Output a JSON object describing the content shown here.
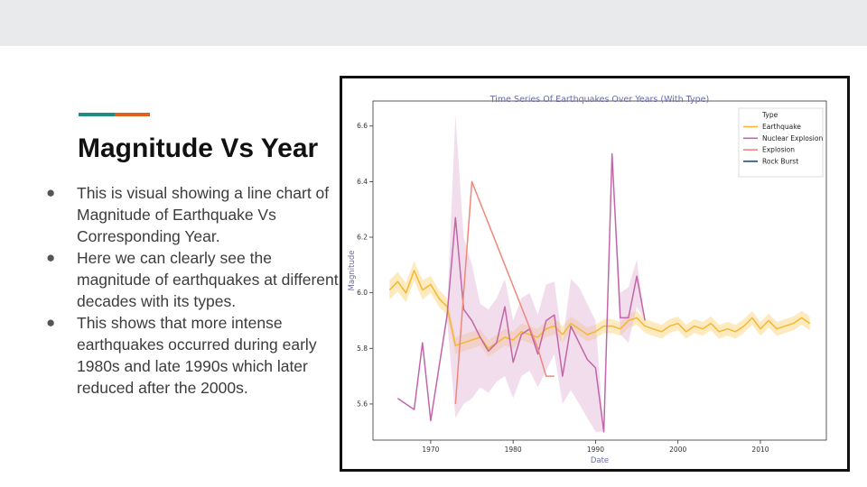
{
  "slide": {
    "title": "Magnitude Vs Year",
    "bullets": [
      "This is visual showing a line chart of Magnitude of Earthquake Vs Corresponding Year.",
      "Here we can clearly see the magnitude of earthquakes at different decades with its types.",
      "This shows that more intense earthquakes occurred during early 1980s and late 1990s which later reduced after the 2000s."
    ],
    "bullet_glyph": "●",
    "colors": {
      "topbar": "#e8eaeb",
      "accent_teal": "#1e8c86",
      "accent_orange": "#e0601f"
    }
  },
  "chart_data": {
    "type": "line",
    "title": "Time Series Of Earthquakes Over Years (With Type)",
    "xlabel": "Date",
    "ylabel": "Magnitude",
    "xlim": [
      1963,
      2018
    ],
    "ylim": [
      5.47,
      6.69
    ],
    "xticks": [
      1970,
      1980,
      1990,
      2000,
      2010
    ],
    "yticks": [
      5.6,
      5.8,
      6.0,
      6.2,
      6.4,
      6.6
    ],
    "ytick_labels": [
      "5.6",
      "5.8",
      "6.0",
      "6.2",
      "6.4",
      "6.6"
    ],
    "grid": false,
    "legend": {
      "title": "Type",
      "placement": "top-right"
    },
    "series": [
      {
        "name": "Earthquake",
        "color": "#f5b733",
        "band_color": "#fbd98a",
        "x": [
          1965,
          1966,
          1967,
          1968,
          1969,
          1970,
          1971,
          1972,
          1973,
          1974,
          1975,
          1976,
          1977,
          1978,
          1979,
          1980,
          1981,
          1982,
          1983,
          1984,
          1985,
          1986,
          1987,
          1988,
          1989,
          1990,
          1991,
          1992,
          1993,
          1994,
          1995,
          1996,
          1997,
          1998,
          1999,
          2000,
          2001,
          2002,
          2003,
          2004,
          2005,
          2006,
          2007,
          2008,
          2009,
          2010,
          2011,
          2012,
          2013,
          2014,
          2015,
          2016
        ],
        "y": [
          6.01,
          6.04,
          6.0,
          6.08,
          6.01,
          6.03,
          5.98,
          5.95,
          5.81,
          5.82,
          5.83,
          5.84,
          5.8,
          5.82,
          5.84,
          5.83,
          5.86,
          5.85,
          5.84,
          5.87,
          5.88,
          5.85,
          5.89,
          5.87,
          5.85,
          5.86,
          5.88,
          5.88,
          5.87,
          5.9,
          5.91,
          5.88,
          5.87,
          5.86,
          5.88,
          5.89,
          5.86,
          5.88,
          5.87,
          5.89,
          5.86,
          5.87,
          5.86,
          5.88,
          5.91,
          5.87,
          5.9,
          5.87,
          5.88,
          5.89,
          5.91,
          5.89
        ],
        "band_half_width": [
          0.035,
          0.035,
          0.035,
          0.035,
          0.035,
          0.03,
          0.03,
          0.03,
          0.03,
          0.03,
          0.03,
          0.03,
          0.03,
          0.03,
          0.03,
          0.03,
          0.03,
          0.03,
          0.03,
          0.03,
          0.03,
          0.03,
          0.025,
          0.025,
          0.025,
          0.025,
          0.025,
          0.025,
          0.025,
          0.025,
          0.025,
          0.025,
          0.025,
          0.025,
          0.025,
          0.025,
          0.025,
          0.025,
          0.025,
          0.025,
          0.025,
          0.025,
          0.025,
          0.025,
          0.025,
          0.025,
          0.025,
          0.025,
          0.025,
          0.025,
          0.025,
          0.025
        ]
      },
      {
        "name": "Nuclear Explosion",
        "color": "#c266a8",
        "band_color": "#e3b3d6",
        "x": [
          1966,
          1968,
          1969,
          1970,
          1972,
          1973,
          1974,
          1975,
          1976,
          1977,
          1978,
          1979,
          1980,
          1981,
          1982,
          1983,
          1984,
          1985,
          1986,
          1987,
          1988,
          1989,
          1990,
          1991,
          1992,
          1993,
          1994,
          1995,
          1996
        ],
        "y": [
          5.62,
          5.58,
          5.82,
          5.54,
          5.92,
          6.27,
          5.94,
          5.9,
          5.84,
          5.79,
          5.82,
          5.95,
          5.75,
          5.85,
          5.87,
          5.78,
          5.9,
          5.92,
          5.7,
          5.88,
          5.82,
          5.76,
          5.73,
          5.5,
          6.5,
          5.91,
          5.91,
          6.06,
          5.9
        ],
        "band_low": [
          5.62,
          5.58,
          5.82,
          5.54,
          5.9,
          5.55,
          5.6,
          5.62,
          5.66,
          5.64,
          5.68,
          5.7,
          5.62,
          5.7,
          5.72,
          5.66,
          5.72,
          5.78,
          5.6,
          5.65,
          5.6,
          5.55,
          5.5,
          5.5,
          6.5,
          5.85,
          5.82,
          5.95,
          5.9
        ],
        "band_high": [
          5.62,
          5.58,
          5.82,
          5.54,
          5.94,
          6.64,
          6.2,
          6.1,
          5.96,
          5.94,
          5.98,
          6.05,
          5.9,
          5.98,
          6.0,
          5.92,
          6.03,
          6.04,
          5.82,
          6.05,
          6.02,
          5.96,
          5.9,
          5.5,
          6.5,
          6.0,
          6.02,
          6.12,
          5.9
        ]
      },
      {
        "name": "Explosion",
        "color": "#f0877a",
        "x": [
          1973,
          1975,
          1983,
          1984,
          1985
        ],
        "y": [
          5.6,
          6.4,
          5.8,
          5.7,
          5.7
        ]
      },
      {
        "name": "Rock Burst",
        "color": "#1f4e79",
        "x": [],
        "y": []
      }
    ]
  }
}
